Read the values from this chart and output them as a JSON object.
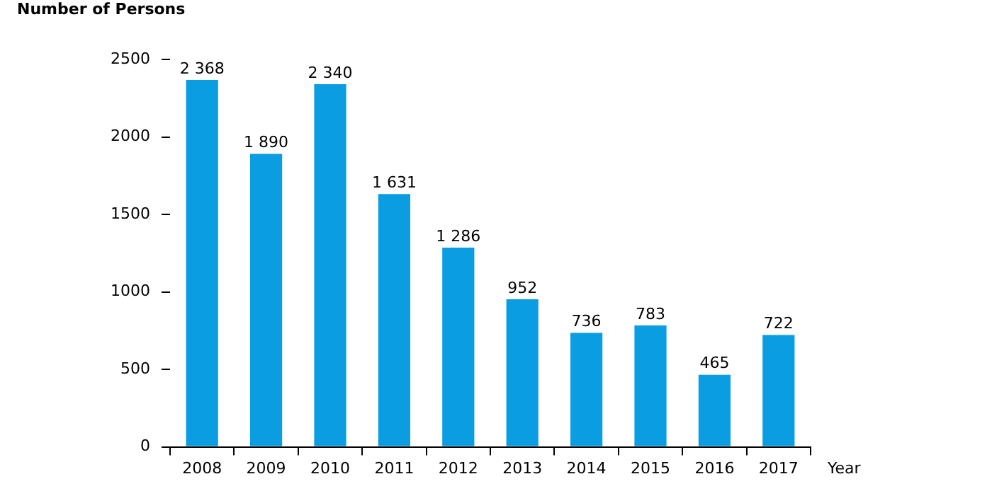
{
  "chart_data": {
    "type": "bar",
    "ylabel": "Number of Persons",
    "xlabel": "Year",
    "categories": [
      "2008",
      "2009",
      "2010",
      "2011",
      "2012",
      "2013",
      "2014",
      "2015",
      "2016",
      "2017"
    ],
    "values": [
      2368,
      1890,
      2340,
      1631,
      1286,
      952,
      736,
      783,
      465,
      722
    ],
    "value_labels": [
      "2 368",
      "1 890",
      "2 340",
      "1 631",
      "1 286",
      "952",
      "736",
      "783",
      "465",
      "722"
    ],
    "color": "#0a9de2",
    "ylim": [
      0,
      2500
    ],
    "yticks": [
      0,
      500,
      1000,
      1500,
      2000,
      2500
    ],
    "grid": false,
    "legend": false
  }
}
